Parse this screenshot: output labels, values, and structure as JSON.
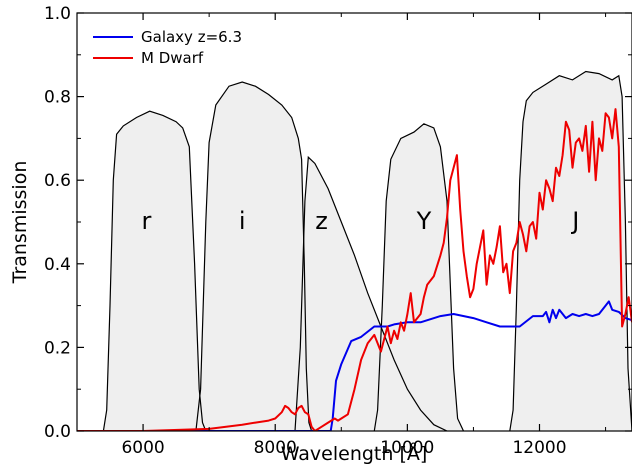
{
  "chart_data": {
    "type": "line",
    "xlabel": "Wavelength [Å]",
    "ylabel": "Transmission",
    "xlim": [
      5000,
      13400
    ],
    "ylim": [
      0.0,
      1.0
    ],
    "x_ticks": [
      "6000",
      "8000",
      "10000",
      "12000"
    ],
    "x_tick_values": [
      6000,
      8000,
      10000,
      12000
    ],
    "y_ticks": [
      "0.0",
      "0.2",
      "0.4",
      "0.6",
      "0.8",
      "1.0"
    ],
    "y_tick_values": [
      0.0,
      0.2,
      0.4,
      0.6,
      0.8,
      1.0
    ],
    "grid": false,
    "legend_position": "top-left",
    "colors": {
      "filter": "#000000",
      "shade": "#eeeeee",
      "galaxy": "#0000ee",
      "mdwarf": "#ee0000"
    },
    "bands": [
      {
        "name": "r",
        "label_x": 6050,
        "label_y": 0.5,
        "curve": [
          [
            5400,
            0.0
          ],
          [
            5450,
            0.05
          ],
          [
            5500,
            0.3
          ],
          [
            5550,
            0.6
          ],
          [
            5600,
            0.71
          ],
          [
            5700,
            0.73
          ],
          [
            5900,
            0.75
          ],
          [
            6100,
            0.765
          ],
          [
            6300,
            0.755
          ],
          [
            6500,
            0.74
          ],
          [
            6600,
            0.725
          ],
          [
            6700,
            0.68
          ],
          [
            6780,
            0.4
          ],
          [
            6850,
            0.1
          ],
          [
            6900,
            0.02
          ],
          [
            6950,
            0.0
          ]
        ]
      },
      {
        "name": "i",
        "label_x": 7500,
        "label_y": 0.5,
        "curve": [
          [
            6800,
            0.0
          ],
          [
            6870,
            0.1
          ],
          [
            6950,
            0.5
          ],
          [
            7000,
            0.69
          ],
          [
            7100,
            0.78
          ],
          [
            7300,
            0.825
          ],
          [
            7500,
            0.835
          ],
          [
            7700,
            0.825
          ],
          [
            7900,
            0.805
          ],
          [
            8100,
            0.78
          ],
          [
            8250,
            0.75
          ],
          [
            8350,
            0.7
          ],
          [
            8400,
            0.65
          ],
          [
            8440,
            0.4
          ],
          [
            8470,
            0.15
          ],
          [
            8510,
            0.02
          ],
          [
            8550,
            0.0
          ]
        ]
      },
      {
        "name": "z",
        "label_x": 8700,
        "label_y": 0.5,
        "curve": [
          [
            8300,
            0.0
          ],
          [
            8380,
            0.2
          ],
          [
            8450,
            0.55
          ],
          [
            8500,
            0.655
          ],
          [
            8600,
            0.64
          ],
          [
            8800,
            0.58
          ],
          [
            9000,
            0.5
          ],
          [
            9200,
            0.42
          ],
          [
            9400,
            0.33
          ],
          [
            9600,
            0.25
          ],
          [
            9800,
            0.17
          ],
          [
            10000,
            0.1
          ],
          [
            10200,
            0.05
          ],
          [
            10400,
            0.015
          ],
          [
            10600,
            0.0
          ]
        ]
      },
      {
        "name": "Y",
        "label_x": 10250,
        "label_y": 0.5,
        "curve": [
          [
            9500,
            0.0
          ],
          [
            9550,
            0.05
          ],
          [
            9620,
            0.3
          ],
          [
            9680,
            0.55
          ],
          [
            9750,
            0.65
          ],
          [
            9900,
            0.7
          ],
          [
            10100,
            0.715
          ],
          [
            10250,
            0.735
          ],
          [
            10400,
            0.725
          ],
          [
            10500,
            0.68
          ],
          [
            10600,
            0.55
          ],
          [
            10650,
            0.35
          ],
          [
            10700,
            0.15
          ],
          [
            10760,
            0.03
          ],
          [
            10850,
            0.0
          ]
        ]
      },
      {
        "name": "J",
        "label_x": 12550,
        "label_y": 0.5,
        "curve": [
          [
            11550,
            0.0
          ],
          [
            11600,
            0.05
          ],
          [
            11650,
            0.3
          ],
          [
            11700,
            0.6
          ],
          [
            11750,
            0.74
          ],
          [
            11800,
            0.79
          ],
          [
            11900,
            0.81
          ],
          [
            12100,
            0.83
          ],
          [
            12300,
            0.85
          ],
          [
            12500,
            0.84
          ],
          [
            12700,
            0.86
          ],
          [
            12900,
            0.855
          ],
          [
            13100,
            0.84
          ],
          [
            13200,
            0.85
          ],
          [
            13250,
            0.8
          ],
          [
            13300,
            0.5
          ],
          [
            13340,
            0.15
          ],
          [
            13400,
            0.0
          ]
        ]
      }
    ],
    "series": [
      {
        "name": "Galaxy z=6.3",
        "color": "#0000ee",
        "x": [
          5000,
          6000,
          7000,
          8000,
          8700,
          8840,
          8870,
          8920,
          9000,
          9150,
          9300,
          9500,
          9700,
          9800,
          10000,
          10200,
          10500,
          10700,
          11000,
          11200,
          11400,
          11700,
          11900,
          12000,
          12050,
          12100,
          12150,
          12200,
          12250,
          12300,
          12400,
          12500,
          12600,
          12700,
          12800,
          12900,
          13000,
          13050,
          13100,
          13200,
          13300,
          13400
        ],
        "values": [
          0.0,
          0.0,
          0.0,
          0.0,
          0.0,
          0.0,
          0.03,
          0.12,
          0.16,
          0.215,
          0.225,
          0.25,
          0.25,
          0.255,
          0.26,
          0.26,
          0.275,
          0.28,
          0.27,
          0.26,
          0.25,
          0.25,
          0.275,
          0.275,
          0.275,
          0.285,
          0.26,
          0.29,
          0.27,
          0.29,
          0.27,
          0.28,
          0.275,
          0.28,
          0.275,
          0.28,
          0.3,
          0.31,
          0.29,
          0.285,
          0.27,
          0.265
        ]
      },
      {
        "name": "M Dwarf",
        "color": "#ee0000",
        "x": [
          5000,
          6000,
          7000,
          7500,
          7700,
          7900,
          8000,
          8100,
          8150,
          8200,
          8250,
          8300,
          8350,
          8400,
          8450,
          8500,
          8550,
          8600,
          8700,
          8800,
          8900,
          8950,
          9000,
          9100,
          9200,
          9300,
          9400,
          9500,
          9550,
          9600,
          9650,
          9700,
          9750,
          9800,
          9850,
          9900,
          9950,
          10000,
          10050,
          10100,
          10150,
          10200,
          10250,
          10300,
          10400,
          10500,
          10550,
          10600,
          10650,
          10700,
          10750,
          10800,
          10850,
          10900,
          10950,
          11000,
          11050,
          11100,
          11150,
          11200,
          11250,
          11300,
          11350,
          11400,
          11450,
          11500,
          11550,
          11600,
          11650,
          11700,
          11750,
          11800,
          11850,
          11900,
          11950,
          12000,
          12050,
          12100,
          12150,
          12200,
          12250,
          12300,
          12350,
          12400,
          12450,
          12500,
          12550,
          12600,
          12650,
          12700,
          12750,
          12800,
          12850,
          12900,
          12950,
          13000,
          13050,
          13100,
          13150,
          13200,
          13250,
          13300,
          13350,
          13400
        ],
        "values": [
          0.0,
          0.0,
          0.005,
          0.015,
          0.02,
          0.025,
          0.03,
          0.045,
          0.06,
          0.055,
          0.045,
          0.04,
          0.055,
          0.06,
          0.045,
          0.04,
          0.01,
          0.0,
          0.01,
          0.02,
          0.03,
          0.025,
          0.03,
          0.04,
          0.1,
          0.17,
          0.21,
          0.23,
          0.21,
          0.19,
          0.22,
          0.25,
          0.21,
          0.24,
          0.22,
          0.26,
          0.24,
          0.28,
          0.33,
          0.26,
          0.27,
          0.28,
          0.32,
          0.35,
          0.37,
          0.42,
          0.45,
          0.51,
          0.6,
          0.63,
          0.66,
          0.53,
          0.43,
          0.37,
          0.32,
          0.34,
          0.4,
          0.44,
          0.48,
          0.35,
          0.42,
          0.4,
          0.44,
          0.49,
          0.38,
          0.4,
          0.33,
          0.43,
          0.45,
          0.5,
          0.47,
          0.43,
          0.49,
          0.5,
          0.46,
          0.57,
          0.53,
          0.6,
          0.58,
          0.55,
          0.63,
          0.61,
          0.66,
          0.74,
          0.72,
          0.63,
          0.69,
          0.7,
          0.67,
          0.73,
          0.62,
          0.74,
          0.6,
          0.7,
          0.67,
          0.76,
          0.75,
          0.7,
          0.77,
          0.68,
          0.25,
          0.28,
          0.32,
          0.26
        ]
      }
    ]
  }
}
